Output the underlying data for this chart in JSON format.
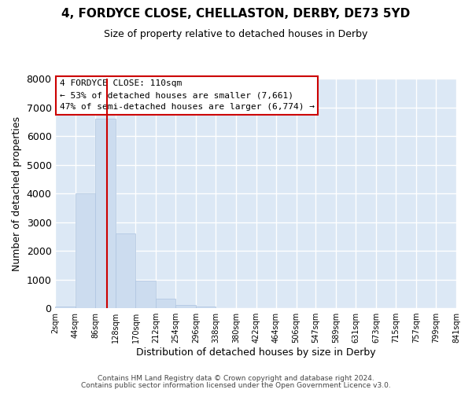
{
  "title": "4, FORDYCE CLOSE, CHELLASTON, DERBY, DE73 5YD",
  "subtitle": "Size of property relative to detached houses in Derby",
  "xlabel": "Distribution of detached houses by size in Derby",
  "ylabel": "Number of detached properties",
  "bar_color": "#ccdcef",
  "bar_edgecolor": "#adc4e0",
  "plot_bg_color": "#dce8f5",
  "fig_bg_color": "#ffffff",
  "grid_color": "#ffffff",
  "vline_color": "#cc0000",
  "vline_x": 110,
  "bin_edges": [
    2,
    44,
    86,
    128,
    170,
    212,
    254,
    296,
    338,
    380,
    422,
    464,
    506,
    547,
    589,
    631,
    673,
    715,
    757,
    799,
    841
  ],
  "bin_labels": [
    "2sqm",
    "44sqm",
    "86sqm",
    "128sqm",
    "170sqm",
    "212sqm",
    "254sqm",
    "296sqm",
    "338sqm",
    "380sqm",
    "422sqm",
    "464sqm",
    "506sqm",
    "547sqm",
    "589sqm",
    "631sqm",
    "673sqm",
    "715sqm",
    "757sqm",
    "799sqm",
    "841sqm"
  ],
  "bar_heights": [
    70,
    4000,
    6600,
    2600,
    950,
    320,
    110,
    70,
    0,
    0,
    0,
    0,
    0,
    0,
    0,
    0,
    0,
    0,
    0,
    0
  ],
  "ylim": [
    0,
    8000
  ],
  "yticks": [
    0,
    1000,
    2000,
    3000,
    4000,
    5000,
    6000,
    7000,
    8000
  ],
  "annotation_title": "4 FORDYCE CLOSE: 110sqm",
  "annotation_line1": "← 53% of detached houses are smaller (7,661)",
  "annotation_line2": "47% of semi-detached houses are larger (6,774) →",
  "annotation_box_color": "#ffffff",
  "annotation_box_edgecolor": "#cc0000",
  "footer1": "Contains HM Land Registry data © Crown copyright and database right 2024.",
  "footer2": "Contains public sector information licensed under the Open Government Licence v3.0."
}
